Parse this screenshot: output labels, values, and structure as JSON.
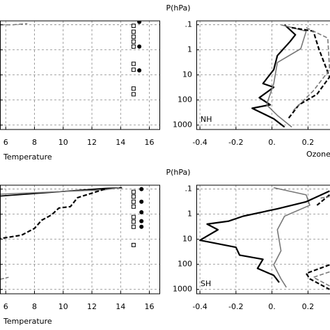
{
  "chart_data": [
    {
      "type": "line",
      "xlabel": "Temperature",
      "log_y": true,
      "grid": true,
      "show_ytick_labels": false,
      "xlim": [
        5.6,
        16.75
      ],
      "ylim": [
        1500,
        0.07
      ],
      "xticks": [
        6,
        8,
        10,
        12,
        14,
        16
      ],
      "yticks": [
        0.1,
        1,
        10,
        100,
        1000
      ],
      "series": [
        {
          "style": "line",
          "color": "#777777",
          "dash": true,
          "width": 1.5,
          "x": [
            5.6,
            6.5,
            7.5
          ],
          "y": [
            0.1,
            0.1,
            0.09
          ]
        },
        {
          "style": "square",
          "color": "#000000",
          "x": [
            14.9,
            14.9,
            14.9,
            14.9,
            14.9,
            14.9,
            14.9,
            14.9,
            14.9
          ],
          "y": [
            0.11,
            0.19,
            0.3,
            0.47,
            0.74,
            3.6,
            6.2,
            35,
            59
          ]
        },
        {
          "style": "circle",
          "color": "#000000",
          "x": [
            15.3,
            15.3,
            15.3
          ],
          "y": [
            0.077,
            0.74,
            6.6
          ]
        }
      ]
    },
    {
      "type": "line",
      "ylabel": "P(hPa)",
      "xlabel": "Ozone (",
      "panel_label": "NH",
      "log_y": true,
      "grid": true,
      "show_ytick_labels": true,
      "xlim": [
        -0.42,
        0.33
      ],
      "ylim": [
        1500,
        0.07
      ],
      "xticks": [
        -0.4,
        -0.2,
        {
          "value": 0,
          "label": "0."
        },
        0.2
      ],
      "yticks": [
        {
          "value": 0.1,
          "label": ".1"
        },
        1,
        10,
        100,
        1000
      ],
      "series": [
        {
          "style": "line",
          "color": "#000000",
          "dash": false,
          "width": 2.2,
          "x": [
            0.07,
            0.13,
            0.1,
            0.03,
            0.01,
            -0.05,
            0.01,
            -0.07,
            -0.01,
            -0.11,
            0.01,
            0.07
          ],
          "y": [
            0.1,
            0.25,
            0.47,
            1.7,
            6.2,
            22,
            31,
            81,
            155,
            214,
            560,
            1200
          ]
        },
        {
          "style": "line",
          "color": "#777777",
          "dash": false,
          "width": 1.6,
          "x": [
            0.05,
            0.19,
            0.16,
            0.03,
            0.01,
            -0.03,
            0.03,
            0.11
          ],
          "y": [
            0.1,
            0.18,
            0.9,
            3.2,
            22,
            155,
            410,
            1200
          ]
        },
        {
          "style": "line",
          "color": "#000000",
          "dash": true,
          "width": 2.2,
          "x": [
            0.11,
            0.23,
            0.26,
            0.32,
            0.25,
            0.15,
            0.09
          ],
          "y": [
            0.13,
            0.18,
            0.9,
            12,
            59,
            155,
            560
          ]
        },
        {
          "style": "line",
          "color": "#777777",
          "dash": true,
          "width": 1.6,
          "x": [
            0.19,
            0.31,
            0.32,
            0.23,
            0.11
          ],
          "y": [
            0.13,
            0.34,
            6.2,
            43,
            300
          ]
        }
      ]
    },
    {
      "type": "line",
      "xlabel": "Temperature",
      "log_y": true,
      "grid": true,
      "show_ytick_labels": false,
      "xlim": [
        5.6,
        16.75
      ],
      "ylim": [
        1500,
        0.07
      ],
      "xticks": [
        6,
        8,
        10,
        12,
        14,
        16
      ],
      "yticks": [
        0.1,
        1,
        10,
        100,
        1000
      ],
      "series": [
        {
          "style": "line",
          "color": "#000000",
          "dash": false,
          "width": 1.8,
          "x": [
            5.6,
            12.9,
            14.1
          ],
          "y": [
            0.19,
            0.094,
            0.088
          ]
        },
        {
          "style": "line",
          "color": "#777777",
          "dash": false,
          "width": 1.5,
          "x": [
            5.6,
            12.9,
            13.9
          ],
          "y": [
            0.16,
            0.107,
            0.088
          ]
        },
        {
          "style": "line",
          "color": "#000000",
          "dash": true,
          "width": 2.2,
          "x": [
            12.9,
            11,
            10.5,
            9.7,
            9.2,
            8.5,
            8,
            7.1,
            5.6
          ],
          "y": [
            0.1,
            0.22,
            0.5,
            0.57,
            1.06,
            1.75,
            3.7,
            6.9,
            9.4
          ]
        },
        {
          "style": "line",
          "color": "#777777",
          "dash": true,
          "width": 1.5,
          "x": [
            5.6,
            6.2
          ],
          "y": [
            396,
            330
          ]
        },
        {
          "style": "square",
          "color": "#000000",
          "x": [
            14.9,
            14.9,
            14.9,
            14.9,
            14.9,
            14.9,
            14.9,
            14.9
          ],
          "y": [
            0.13,
            0.2,
            0.32,
            0.5,
            1.3,
            2,
            3.2,
            17
          ]
        },
        {
          "style": "circle",
          "color": "#000000",
          "x": [
            15.45,
            15.45,
            15.45,
            15.45,
            15.45
          ],
          "y": [
            0.1,
            0.32,
            0.84,
            1.9,
            3.2
          ]
        }
      ]
    },
    {
      "type": "line",
      "ylabel": "P(hPa)",
      "panel_label": "SH",
      "log_y": true,
      "grid": true,
      "show_ytick_labels": true,
      "xlim": [
        -0.42,
        0.33
      ],
      "ylim": [
        1500,
        0.07
      ],
      "xticks": [
        -0.4,
        -0.2,
        {
          "value": 0,
          "label": "0."
        },
        0.2
      ],
      "yticks": [
        {
          "value": 0.1,
          "label": ".1"
        },
        1,
        10,
        100,
        1000
      ],
      "series": [
        {
          "style": "line",
          "color": "#777777",
          "dash": false,
          "width": 1.6,
          "x": [
            0.01,
            0.19,
            0.21,
            0.07,
            0.03,
            0.05,
            0.01,
            0.05,
            0.08
          ],
          "y": [
            0.088,
            0.17,
            0.44,
            1.2,
            4.2,
            29,
            105,
            380,
            830
          ]
        },
        {
          "style": "line",
          "color": "#000000",
          "dash": false,
          "width": 2.2,
          "x": [
            0.32,
            0.19,
            0.03,
            -0.16,
            -0.24,
            -0.36,
            -0.3,
            -0.4,
            -0.2,
            -0.18,
            -0.05,
            -0.08,
            0.01,
            0.04
          ],
          "y": [
            0.12,
            0.32,
            0.61,
            1.2,
            1.9,
            2.5,
            4.2,
            11,
            21,
            43,
            63,
            145,
            275,
            530
          ]
        },
        {
          "style": "line",
          "color": "#000000",
          "dash": true,
          "width": 2.2,
          "x": [
            0.32,
            0.25,
            null,
            0.32,
            0.19,
            0.21,
            0.32
          ],
          "y": [
            0.17,
            0.44,
            null,
            105,
            230,
            380,
            1000
          ]
        },
        {
          "style": "line",
          "color": "#777777",
          "dash": true,
          "width": 1.6,
          "x": [
            0.27,
            0.32,
            null,
            0.32,
            0.23,
            0.32
          ],
          "y": [
            0.23,
            0.2,
            null,
            200,
            330,
            730
          ]
        }
      ]
    }
  ]
}
